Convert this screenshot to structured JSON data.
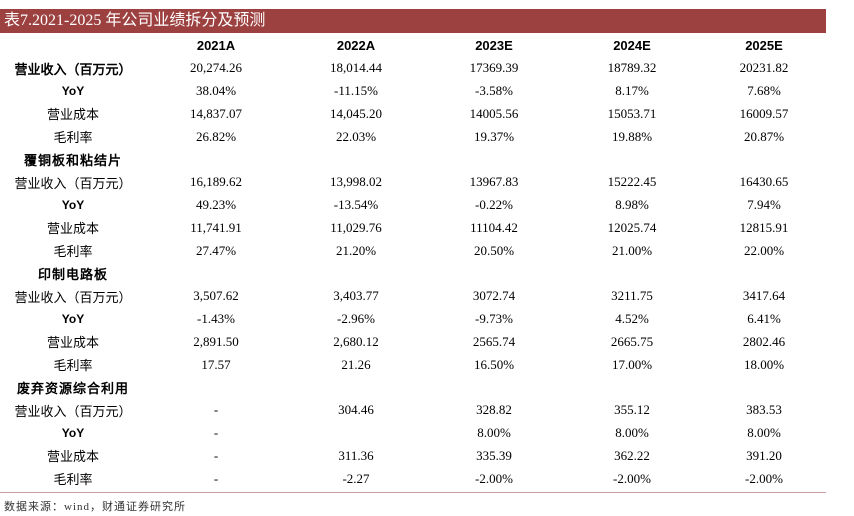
{
  "title": "表7.2021-2025 年公司业绩拆分及预测",
  "columns": [
    "2021A",
    "2022A",
    "2023E",
    "2024E",
    "2025E"
  ],
  "rows": [
    {
      "kind": "metric",
      "style": "bold",
      "label": "营业收入（百万元）",
      "values": [
        "20,274.26",
        "18,014.44",
        "17369.39",
        "18789.32",
        "20231.82"
      ]
    },
    {
      "kind": "metric",
      "style": "yoy",
      "label": "YoY",
      "values": [
        "38.04%",
        "-11.15%",
        "-3.58%",
        "8.17%",
        "7.68%"
      ]
    },
    {
      "kind": "metric",
      "style": "plain",
      "label": "营业成本",
      "values": [
        "14,837.07",
        "14,045.20",
        "14005.56",
        "15053.71",
        "16009.57"
      ]
    },
    {
      "kind": "metric",
      "style": "plain",
      "label": "毛利率",
      "values": [
        "26.82%",
        "22.03%",
        "19.37%",
        "19.88%",
        "20.87%"
      ]
    },
    {
      "kind": "section",
      "label": "覆铜板和粘结片"
    },
    {
      "kind": "metric",
      "style": "plain",
      "label": "营业收入（百万元）",
      "values": [
        "16,189.62",
        "13,998.02",
        "13967.83",
        "15222.45",
        "16430.65"
      ]
    },
    {
      "kind": "metric",
      "style": "yoy",
      "label": "YoY",
      "values": [
        "49.23%",
        "-13.54%",
        "-0.22%",
        "8.98%",
        "7.94%"
      ]
    },
    {
      "kind": "metric",
      "style": "plain",
      "label": "营业成本",
      "values": [
        "11,741.91",
        "11,029.76",
        "11104.42",
        "12025.74",
        "12815.91"
      ]
    },
    {
      "kind": "metric",
      "style": "plain",
      "label": "毛利率",
      "values": [
        "27.47%",
        "21.20%",
        "20.50%",
        "21.00%",
        "22.00%"
      ]
    },
    {
      "kind": "section",
      "label": "印制电路板"
    },
    {
      "kind": "metric",
      "style": "plain",
      "label": "营业收入（百万元）",
      "values": [
        "3,507.62",
        "3,403.77",
        "3072.74",
        "3211.75",
        "3417.64"
      ]
    },
    {
      "kind": "metric",
      "style": "yoy",
      "label": "YoY",
      "values": [
        "-1.43%",
        "-2.96%",
        "-9.73%",
        "4.52%",
        "6.41%"
      ]
    },
    {
      "kind": "metric",
      "style": "plain",
      "label": "营业成本",
      "values": [
        "2,891.50",
        "2,680.12",
        "2565.74",
        "2665.75",
        "2802.46"
      ]
    },
    {
      "kind": "metric",
      "style": "plain",
      "label": "毛利率",
      "values": [
        "17.57",
        "21.26",
        "16.50%",
        "17.00%",
        "18.00%"
      ]
    },
    {
      "kind": "section",
      "label": "废弃资源综合利用"
    },
    {
      "kind": "metric",
      "style": "plain",
      "label": "营业收入（百万元）",
      "values": [
        "-",
        "304.46",
        "328.82",
        "355.12",
        "383.53"
      ]
    },
    {
      "kind": "metric",
      "style": "yoy",
      "label": "YoY",
      "values": [
        "-",
        "",
        "8.00%",
        "8.00%",
        "8.00%"
      ]
    },
    {
      "kind": "metric",
      "style": "plain",
      "label": "营业成本",
      "values": [
        "-",
        "311.36",
        "335.39",
        "362.22",
        "391.20"
      ]
    },
    {
      "kind": "metric",
      "style": "plain",
      "label": "毛利率",
      "values": [
        "-",
        "-2.27",
        "-2.00%",
        "-2.00%",
        "-2.00%"
      ]
    }
  ],
  "source": "数据来源：wind，财通证券研究所",
  "colors": {
    "title_bg": "#9c4140",
    "title_text": "#ffffff"
  }
}
